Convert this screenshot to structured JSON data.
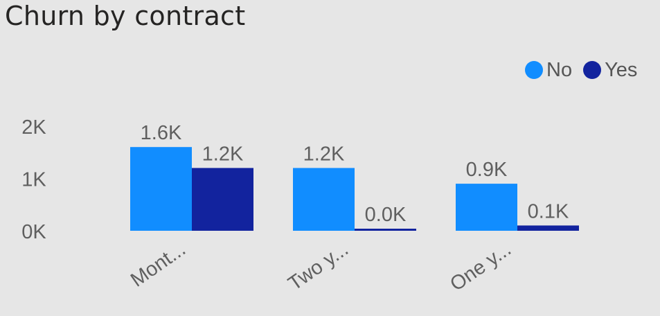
{
  "visual": {
    "title": "Churn by contract"
  },
  "colors": {
    "No": "#118dff",
    "Yes": "#12239e"
  },
  "chart_data": {
    "type": "bar",
    "title": "Churn by contract",
    "categories": [
      "Mont...",
      "Two y...",
      "One y..."
    ],
    "series": [
      {
        "name": "No",
        "values": [
          1.6,
          1.2,
          0.9
        ],
        "labels": [
          "1.6K",
          "1.2K",
          "0.9K"
        ]
      },
      {
        "name": "Yes",
        "values": [
          1.2,
          0.0,
          0.1
        ],
        "labels": [
          "1.2K",
          "0.0K",
          "0.1K"
        ]
      }
    ],
    "unit": "K",
    "yticks": [
      {
        "value": 0,
        "label": "0K"
      },
      {
        "value": 1,
        "label": "1K"
      },
      {
        "value": 2,
        "label": "2K"
      }
    ],
    "ylim": [
      0,
      2
    ],
    "xlabel": "",
    "ylabel": "",
    "grid": false,
    "legend_position": "top-right"
  }
}
